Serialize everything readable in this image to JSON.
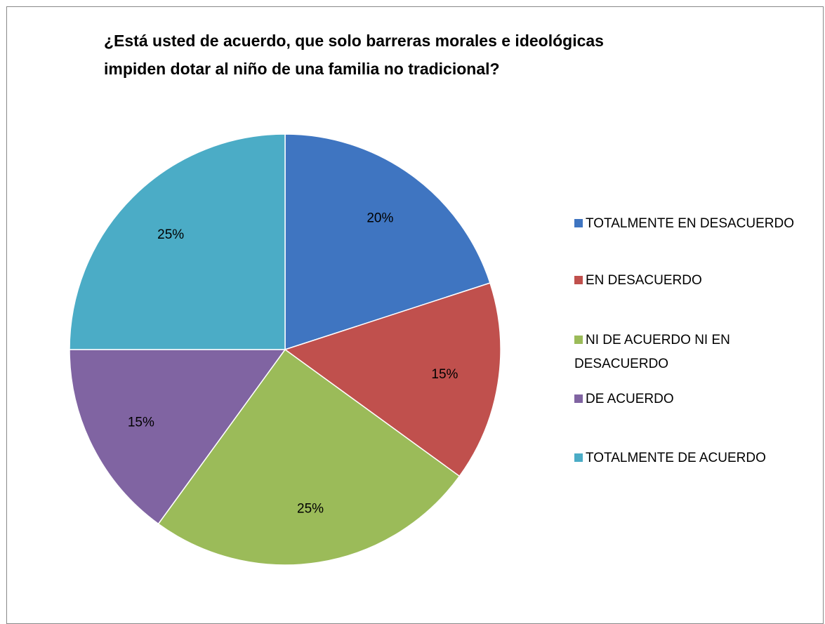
{
  "chart_data": {
    "type": "pie",
    "title": "¿Está usted de acuerdo, que solo barreras morales e ideológicas impiden dotar al niño de una familia no tradicional?",
    "categories": [
      "TOTALMENTE EN DESACUERDO",
      "EN DESACUERDO",
      "NI DE ACUERDO NI EN DESACUERDO",
      "DE ACUERDO",
      "TOTALMENTE DE ACUERDO"
    ],
    "values": [
      20,
      15,
      25,
      15,
      25
    ],
    "value_labels": [
      "20%",
      "15%",
      "25%",
      "15%",
      "25%"
    ],
    "colors": [
      "#3f75c1",
      "#c0504d",
      "#9bbb59",
      "#8064a2",
      "#4bacc6"
    ],
    "legend": "right"
  }
}
